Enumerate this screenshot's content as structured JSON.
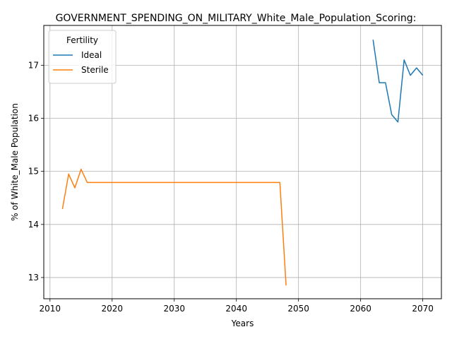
{
  "chart_data": {
    "type": "line",
    "title": "GOVERNMENT_SPENDING_ON_MILITARY_White_Male_Population_Scoring:",
    "xlabel": "Years",
    "ylabel": "% of White_Male Population",
    "xlim": [
      2009,
      2073
    ],
    "ylim": [
      12.6,
      17.75
    ],
    "xticks": [
      2010,
      2020,
      2030,
      2040,
      2050,
      2060,
      2070
    ],
    "yticks": [
      13,
      14,
      15,
      16,
      17
    ],
    "grid": true,
    "legend": {
      "title": "Fertility",
      "placement": "top-left"
    },
    "series": [
      {
        "name": "Ideal",
        "color": "#1f77b4",
        "x": [
          2062,
          2063,
          2064,
          2065,
          2066,
          2067,
          2068,
          2069,
          2070
        ],
        "y": [
          17.48,
          16.67,
          16.67,
          16.07,
          15.93,
          17.1,
          16.81,
          16.95,
          16.81
        ]
      },
      {
        "name": "Sterile",
        "color": "#ff7f0e",
        "x": [
          2012,
          2013,
          2014,
          2015,
          2016,
          2017,
          2018,
          2019,
          2020,
          2021,
          2022,
          2023,
          2024,
          2025,
          2026,
          2027,
          2028,
          2029,
          2030,
          2031,
          2032,
          2033,
          2034,
          2035,
          2036,
          2037,
          2038,
          2039,
          2040,
          2041,
          2042,
          2043,
          2044,
          2045,
          2046,
          2047,
          2048
        ],
        "y": [
          14.29,
          14.95,
          14.69,
          15.04,
          14.79,
          14.79,
          14.79,
          14.79,
          14.79,
          14.79,
          14.79,
          14.79,
          14.79,
          14.79,
          14.79,
          14.79,
          14.79,
          14.79,
          14.79,
          14.79,
          14.79,
          14.79,
          14.79,
          14.79,
          14.79,
          14.79,
          14.79,
          14.79,
          14.79,
          14.79,
          14.79,
          14.79,
          14.79,
          14.79,
          14.79,
          14.79,
          12.85
        ]
      }
    ]
  }
}
